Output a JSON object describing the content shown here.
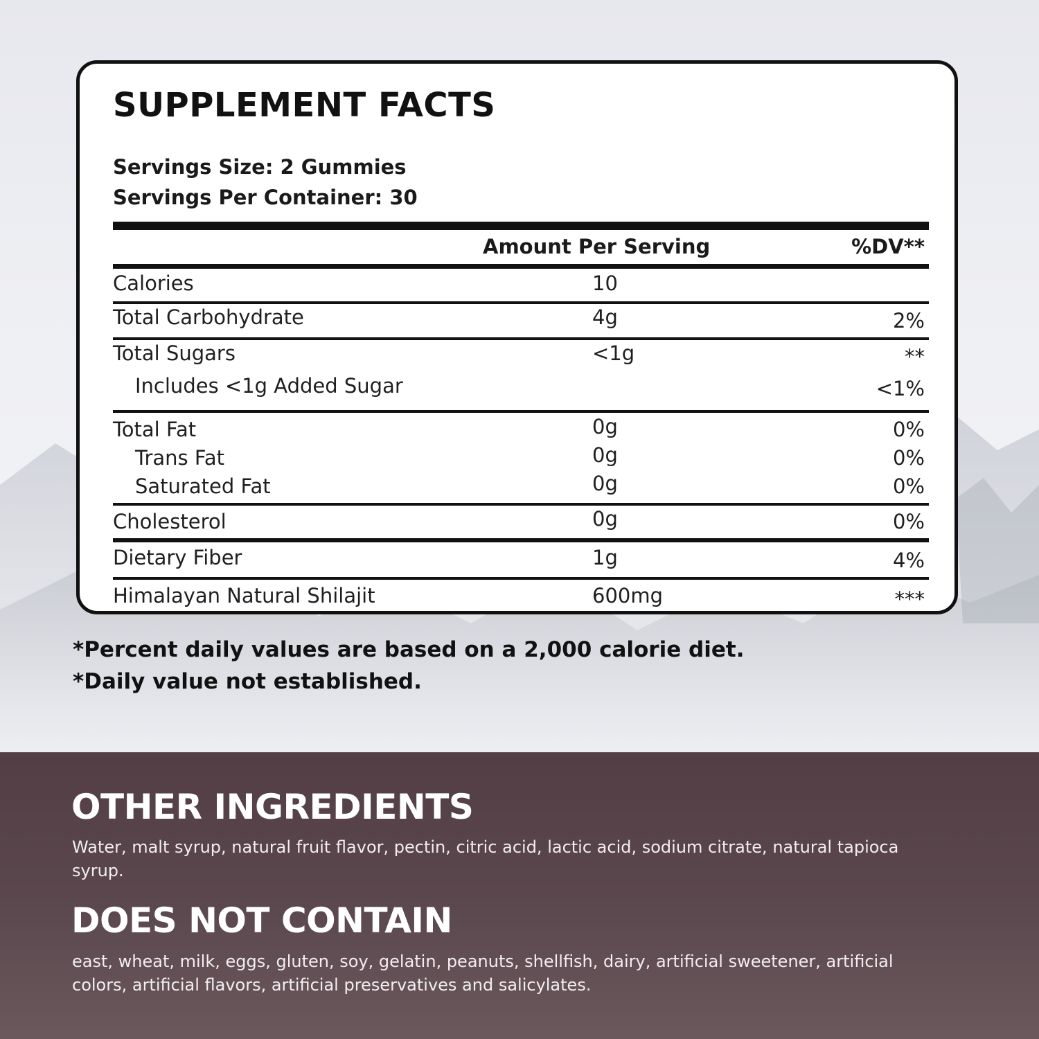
{
  "facts": {
    "title": "SUPPLEMENT FACTS",
    "serving_size": "Servings Size: 2 Gummies",
    "servings_per_container": "Servings Per Container: 30",
    "amount_header": "Amount Per Serving",
    "dv_header": "%DV**",
    "rows": [
      {
        "name": "Calories",
        "amount": "10",
        "dv": ""
      },
      {
        "name": "Total Carbohydrate",
        "amount": "4g",
        "dv": "2%"
      },
      {
        "name": "Total Sugars",
        "amount": "<1g",
        "dv": "**"
      },
      {
        "name": "Includes <1g Added Sugar",
        "amount": "",
        "dv": "<1%"
      },
      {
        "name": "Total Fat",
        "amount": "0g",
        "dv": "0%"
      },
      {
        "name": "Trans Fat",
        "amount": "0g",
        "dv": "0%"
      },
      {
        "name": "Saturated Fat",
        "amount": "0g",
        "dv": "0%"
      },
      {
        "name": "Cholesterol",
        "amount": "0g",
        "dv": "0%"
      },
      {
        "name": "Dietary Fiber",
        "amount": "1g",
        "dv": "4%"
      },
      {
        "name": "Himalayan Natural Shilajit",
        "amount": "600mg",
        "dv": "***"
      }
    ]
  },
  "footnotes": {
    "percent_note": "*Percent daily values are based on a 2,000 calorie diet.",
    "dv_note": "*Daily value not established."
  },
  "other_ingredients": {
    "title": "OTHER INGREDIENTS",
    "text": "Water, malt syrup, natural fruit flavor, pectin, citric acid, lactic acid, sodium citrate, natural tapioca syrup."
  },
  "does_not_contain": {
    "title": "DOES NOT CONTAIN",
    "text": "east, wheat, milk, eggs, gluten, soy, gelatin, peanuts, shellfish, dairy, artificial sweetener, artificial colors, artificial flavors, artificial preservatives and salicylates."
  },
  "colors": {
    "panel_border": "#111111",
    "bottom_band": "#5a474d",
    "heading_text": "#ffffff"
  }
}
